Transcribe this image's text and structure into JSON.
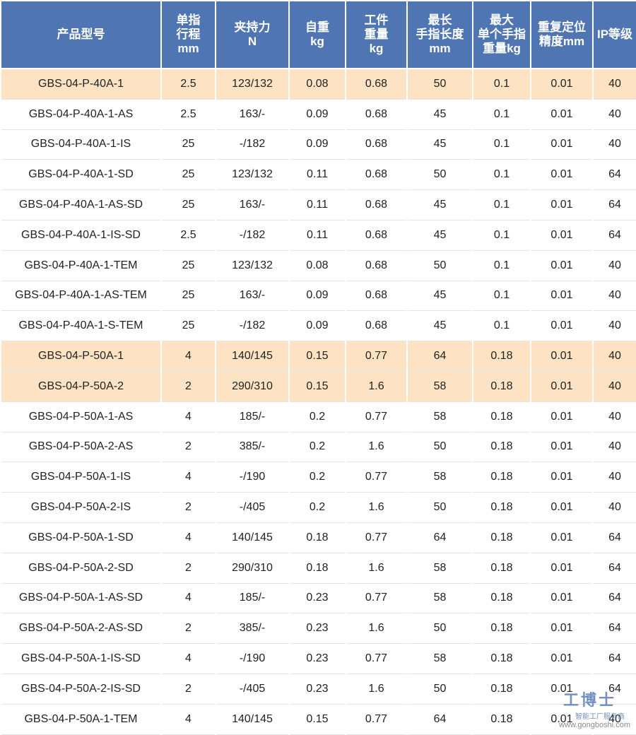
{
  "table": {
    "header": [
      [
        "产品型号"
      ],
      [
        "单指",
        "行程",
        "mm"
      ],
      [
        "夹持力",
        "N"
      ],
      [
        "自重",
        "kg"
      ],
      [
        "工件",
        "重量",
        "kg"
      ],
      [
        "最长",
        "手指长度",
        "mm"
      ],
      [
        "最大",
        "单个手指",
        "重量kg"
      ],
      [
        "重复定位",
        "精度mm"
      ],
      [
        "IP等级"
      ]
    ],
    "rows": [
      [
        "GBS-04-P-40A-1",
        "2.5",
        "123/132",
        "0.08",
        "0.68",
        "50",
        "0.1",
        "0.01",
        "40"
      ],
      [
        "GBS-04-P-40A-1-AS",
        "2.5",
        "163/-",
        "0.09",
        "0.68",
        "45",
        "0.1",
        "0.01",
        "40"
      ],
      [
        "GBS-04-P-40A-1-IS",
        "25",
        "-/182",
        "0.09",
        "0.68",
        "45",
        "0.1",
        "0.01",
        "40"
      ],
      [
        "GBS-04-P-40A-1-SD",
        "25",
        "123/132",
        "0.11",
        "0.68",
        "50",
        "0.1",
        "0.01",
        "64"
      ],
      [
        "GBS-04-P-40A-1-AS-SD",
        "25",
        "163/-",
        "0.11",
        "0.68",
        "45",
        "0.1",
        "0.01",
        "64"
      ],
      [
        "GBS-04-P-40A-1-IS-SD",
        "2.5",
        "-/182",
        "0.11",
        "0.68",
        "45",
        "0.1",
        "0.01",
        "64"
      ],
      [
        "GBS-04-P-40A-1-TEM",
        "25",
        "123/132",
        "0.08",
        "0.68",
        "50",
        "0.1",
        "0.01",
        "40"
      ],
      [
        "GBS-04-P-40A-1-AS-TEM",
        "25",
        "163/-",
        "0.09",
        "0.68",
        "45",
        "0.1",
        "0.01",
        "40"
      ],
      [
        "GBS-04-P-40A-1-S-TEM",
        "25",
        "-/182",
        "0.09",
        "0.68",
        "45",
        "0.1",
        "0.01",
        "40"
      ],
      [
        "GBS-04-P-50A-1",
        "4",
        "140/145",
        "0.15",
        "0.77",
        "64",
        "0.18",
        "0.01",
        "40"
      ],
      [
        "GBS-04-P-50A-2",
        "2",
        "290/310",
        "0.15",
        "1.6",
        "58",
        "0.18",
        "0.01",
        "40"
      ],
      [
        "GBS-04-P-50A-1-AS",
        "4",
        "185/-",
        "0.2",
        "0.77",
        "58",
        "0.18",
        "0.01",
        "40"
      ],
      [
        "GBS-04-P-50A-2-AS",
        "2",
        "385/-",
        "0.2",
        "1.6",
        "50",
        "0.18",
        "0.01",
        "40"
      ],
      [
        "GBS-04-P-50A-1-IS",
        "4",
        "-/190",
        "0.2",
        "0.77",
        "58",
        "0.18",
        "0.01",
        "40"
      ],
      [
        "GBS-04-P-50A-2-IS",
        "2",
        "-/405",
        "0.2",
        "1.6",
        "50",
        "0.18",
        "0.01",
        "40"
      ],
      [
        "GBS-04-P-50A-1-SD",
        "4",
        "140/145",
        "0.18",
        "0.77",
        "64",
        "0.18",
        "0.01",
        "64"
      ],
      [
        "GBS-04-P-50A-2-SD",
        "2",
        "290/310",
        "0.18",
        "1.6",
        "58",
        "0.18",
        "0.01",
        "64"
      ],
      [
        "GBS-04-P-50A-1-AS-SD",
        "4",
        "185/-",
        "0.23",
        "0.77",
        "58",
        "0.18",
        "0.01",
        "64"
      ],
      [
        "GBS-04-P-50A-2-AS-SD",
        "2",
        "385/-",
        "0.23",
        "1.6",
        "50",
        "0.18",
        "0.01",
        "64"
      ],
      [
        "GBS-04-P-50A-1-IS-SD",
        "4",
        "-/190",
        "0.23",
        "0.77",
        "58",
        "0.18",
        "0.01",
        "64"
      ],
      [
        "GBS-04-P-50A-2-IS-SD",
        "2",
        "-/405",
        "0.23",
        "1.6",
        "50",
        "0.18",
        "0.01",
        "64"
      ],
      [
        "GBS-04-P-50A-1-TEM",
        "4",
        "140/145",
        "0.15",
        "0.77",
        "64",
        "0.18",
        "0.01",
        "40"
      ]
    ]
  },
  "watermark": {
    "brand": "工博士",
    "slogan": "智能工厂服务商",
    "url": "www.gongboshi.com"
  }
}
